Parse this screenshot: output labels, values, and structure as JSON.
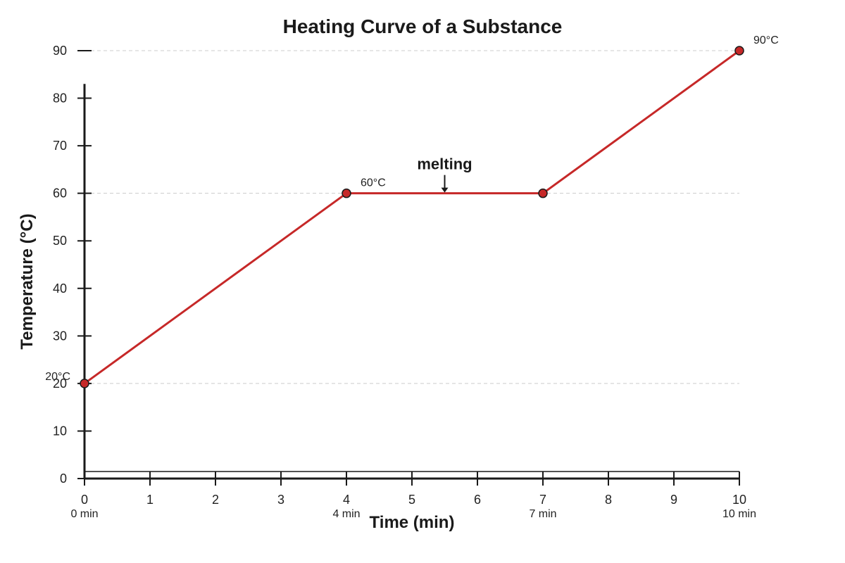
{
  "chart_data": {
    "type": "line",
    "title": "Heating Curve of a Substance",
    "xlabel": "Time (min)",
    "ylabel": "Temperature (°C)",
    "xlim": [
      0,
      10
    ],
    "ylim": [
      0,
      90
    ],
    "x_ticks": [
      "0",
      "1",
      "2",
      "3",
      "4",
      "5",
      "6",
      "7",
      "8",
      "9",
      "10"
    ],
    "y_ticks": [
      "0",
      "10",
      "20",
      "30",
      "40",
      "50",
      "60",
      "70",
      "80",
      "90"
    ],
    "gridlines_y": [
      20,
      60,
      90
    ],
    "series": [
      {
        "color": "#c62828",
        "points": [
          {
            "x": 0,
            "y": 20
          },
          {
            "x": 4,
            "y": 60
          },
          {
            "x": 7,
            "y": 60
          },
          {
            "x": 10,
            "y": 90
          }
        ]
      }
    ],
    "point_labels": [
      {
        "x": 0,
        "y": 20,
        "text": "20°C"
      },
      {
        "x": 4,
        "y": 60,
        "text": "60°C"
      },
      {
        "x": 10,
        "y": 90,
        "text": "90°C"
      }
    ],
    "time_labels": [
      {
        "x": 0,
        "text": "0 min"
      },
      {
        "x": 4,
        "text": "4 min"
      },
      {
        "x": 7,
        "text": "7 min"
      },
      {
        "x": 10,
        "text": "10 min"
      }
    ],
    "annotations": [
      {
        "x": 5.5,
        "y": 60,
        "text": "melting"
      }
    ],
    "grid": "horizontal dashed at labeled temperatures"
  }
}
